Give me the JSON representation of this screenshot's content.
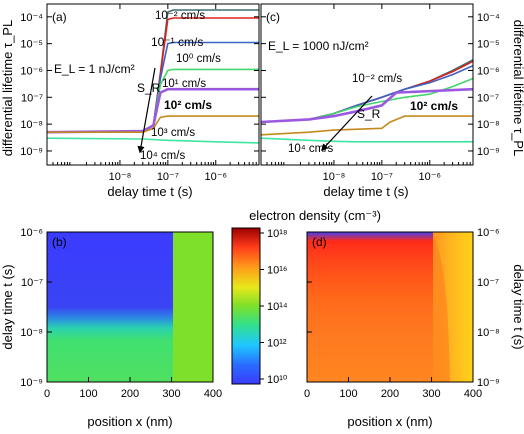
{
  "chart_data": [
    {
      "panel": "(a)",
      "type": "line",
      "annotation": "E_L = 1 nJ/cm²",
      "xlabel": "delay time t (s)",
      "ylabel": "differential lifetime τ_PL",
      "x_scale": "log",
      "y_scale": "log",
      "xlim": [
        3e-10,
        8e-06
      ],
      "ylim": [
        3e-10,
        0.0003
      ],
      "x_tick_labels": [
        "10⁻⁸",
        "10⁻⁷",
        "10⁻⁶"
      ],
      "y_tick_labels": [
        "10⁻⁹",
        "10⁻⁸",
        "10⁻⁷",
        "10⁻⁶",
        "10⁻⁵",
        "10⁻⁴"
      ],
      "arrow_label": "S_R",
      "series": [
        {
          "name": "10⁻² cm/s",
          "color": "#3d6e72",
          "x": [
            3e-10,
            3e-08,
            5e-08,
            7e-08,
            1e-07,
            1.3e-07,
            8e-06
          ],
          "y": [
            5e-09,
            5.5e-09,
            9e-09,
            8e-07,
            0.00015,
            0.00018,
            0.00018
          ]
        },
        {
          "name": "10⁻¹ cm/s",
          "color": "#e0201b",
          "x": [
            3e-10,
            3e-08,
            5e-08,
            7e-08,
            1e-07,
            1.3e-07,
            8e-06
          ],
          "y": [
            5e-09,
            5.5e-09,
            9e-09,
            7e-07,
            8e-05,
            9e-05,
            9e-05
          ]
        },
        {
          "name": "10⁰ cm/s",
          "color": "#3b63c4",
          "x": [
            3e-10,
            3e-08,
            5e-08,
            7e-08,
            1e-07,
            1.3e-07,
            8e-06
          ],
          "y": [
            5e-09,
            5.5e-09,
            9e-09,
            5e-07,
            1e-05,
            1.1e-05,
            1.1e-05
          ]
        },
        {
          "name": "10¹ cm/s",
          "color": "#44d66a",
          "x": [
            3e-10,
            3e-08,
            5e-08,
            7e-08,
            1e-07,
            1.3e-07,
            8e-06
          ],
          "y": [
            5e-09,
            5.5e-09,
            9e-09,
            3e-07,
            1e-06,
            1.1e-06,
            1.1e-06
          ]
        },
        {
          "name": "10² cm/s",
          "color": "#9b59e0",
          "x": [
            3e-10,
            3e-08,
            5e-08,
            7e-08,
            1e-07,
            1.3e-07,
            8e-06
          ],
          "y": [
            5e-09,
            5.5e-09,
            9e-09,
            1.5e-07,
            2e-07,
            2e-07,
            2e-07
          ]
        },
        {
          "name": "10³ cm/s",
          "color": "#c48a1e",
          "x": [
            3e-10,
            3e-08,
            5e-08,
            7e-08,
            1e-07,
            1.3e-07,
            8e-06
          ],
          "y": [
            5e-09,
            5e-09,
            7e-09,
            1.8e-08,
            2e-08,
            2e-08,
            2e-08
          ]
        },
        {
          "name": "10⁴ cm/s",
          "color": "#3ee6a0",
          "x": [
            3e-10,
            3e-08,
            1e-07,
            1e-06,
            8e-06
          ],
          "y": [
            3e-09,
            2.8e-09,
            2.5e-09,
            2.2e-09,
            2e-09
          ]
        }
      ]
    },
    {
      "panel": "(c)",
      "type": "line",
      "annotation": "E_L = 1000 nJ/cm²",
      "xlabel": "delay time t (s)",
      "ylabel": "differential lifetime τ_PL",
      "x_scale": "log",
      "y_scale": "log",
      "xlim": [
        3e-10,
        8e-06
      ],
      "ylim": [
        3e-10,
        0.0003
      ],
      "x_tick_labels": [
        "10⁻⁸",
        "10⁻⁷",
        "10⁻⁶"
      ],
      "y_tick_labels": [
        "10⁻⁹",
        "10⁻⁸",
        "10⁻⁷",
        "10⁻⁶",
        "10⁻⁵",
        "10⁻⁴"
      ],
      "arrow_label": "S_R",
      "series": [
        {
          "name": "10⁻² cm/s",
          "color": "#3d6e72",
          "x": [
            3e-10,
            3e-09,
            1e-08,
            3e-08,
            1e-07,
            3e-07,
            1e-06,
            3e-06,
            8e-06
          ],
          "y": [
            1.2e-08,
            1.5e-08,
            2.5e-08,
            5e-08,
            1e-07,
            2e-07,
            4e-07,
            1e-06,
            2.5e-06
          ]
        },
        {
          "name": "10⁻¹ cm/s",
          "color": "#e0201b",
          "x": [
            3e-10,
            3e-09,
            1e-08,
            3e-08,
            1e-07,
            3e-07,
            1e-06,
            3e-06,
            8e-06
          ],
          "y": [
            1.2e-08,
            1.5e-08,
            2.5e-08,
            5e-08,
            1e-07,
            2e-07,
            4e-07,
            9e-07,
            2.2e-06
          ]
        },
        {
          "name": "10⁰ cm/s",
          "color": "#3b63c4",
          "x": [
            3e-10,
            3e-09,
            1e-08,
            3e-08,
            1e-07,
            3e-07,
            1e-06,
            3e-06,
            8e-06
          ],
          "y": [
            1.2e-08,
            1.5e-08,
            2.5e-08,
            5e-08,
            1e-07,
            2e-07,
            3.5e-07,
            7e-07,
            1.5e-06
          ]
        },
        {
          "name": "10¹ cm/s",
          "color": "#44d66a",
          "x": [
            3e-10,
            3e-09,
            1e-08,
            3e-08,
            1e-07,
            3e-07,
            1e-06,
            3e-06,
            8e-06
          ],
          "y": [
            1.2e-08,
            1.5e-08,
            2.5e-08,
            4.5e-08,
            7e-08,
            1e-07,
            1.3e-07,
            2.5e-07,
            5e-07
          ]
        },
        {
          "name": "10² cm/s",
          "color": "#9b59e0",
          "x": [
            3e-10,
            3e-09,
            1e-08,
            3e-08,
            1e-07,
            2e-07,
            8e-06
          ],
          "y": [
            1.2e-08,
            1.5e-08,
            2e-08,
            3e-08,
            5e-08,
            1.5e-07,
            2e-07
          ]
        },
        {
          "name": "10³ cm/s",
          "color": "#c48a1e",
          "x": [
            3e-10,
            3e-09,
            1e-08,
            1e-07,
            1.5e-07,
            3e-07,
            8e-06
          ],
          "y": [
            4e-09,
            5e-09,
            6e-09,
            7e-09,
            1.2e-08,
            2e-08,
            2e-08
          ]
        },
        {
          "name": "10⁴ cm/s",
          "color": "#3ee6a0",
          "x": [
            3e-10,
            3e-09,
            1e-08,
            3e-08,
            1e-07,
            8e-06
          ],
          "y": [
            3e-09,
            2.5e-09,
            2.3e-09,
            2.2e-09,
            2.2e-09,
            2.2e-09
          ]
        }
      ]
    },
    {
      "panel": "(b)",
      "type": "heatmap",
      "xlabel": "position x (nm)",
      "ylabel": "delay time t (s)",
      "xlim": [
        0,
        400
      ],
      "y_scale": "log",
      "ylim": [
        1e-09,
        1e-06
      ],
      "x_tick_labels": [
        "0",
        "100",
        "200",
        "300",
        "400"
      ],
      "y_tick_labels": [
        "10⁻⁹",
        "10⁻⁸",
        "10⁻⁷",
        "10⁻⁶"
      ],
      "interface_x": 300,
      "log10_density_left_by_log10_time": {
        "-9": 13.3,
        "-8.5": 13.2,
        "-8": 12.6,
        "-7.8": 12.0,
        "-7.5": 11.0,
        "-6": 11.0
      },
      "log10_density_right": 14.0
    },
    {
      "panel": "(d)",
      "type": "heatmap",
      "xlabel": "position x (nm)",
      "ylabel": "delay time t (s)",
      "xlim": [
        0,
        400
      ],
      "y_scale": "log",
      "ylim": [
        1e-09,
        1e-06
      ],
      "x_tick_labels": [
        "0",
        "100",
        "200",
        "300",
        "400"
      ],
      "y_tick_labels": [
        "10⁻⁹",
        "10⁻⁸",
        "10⁻⁷",
        "10⁻⁶"
      ],
      "interface_x": 300,
      "log10_density_left_by_log10_time": {
        "-9": 16.5,
        "-8": 16.6,
        "-7.5": 16.9,
        "-7": 17.2,
        "-6.5": 17.6,
        "-6": 18.0
      },
      "log10_density_right_near_interface": 16.3,
      "log10_density_right_far": 15.6
    },
    {
      "type": "colorbar",
      "title": "electron density (cm⁻³)",
      "scale": "log",
      "range": [
        10000000000.0,
        1e+18
      ],
      "tick_labels": [
        "10¹⁰",
        "10¹²",
        "10¹⁴",
        "10¹⁶",
        "10¹⁸"
      ]
    }
  ]
}
